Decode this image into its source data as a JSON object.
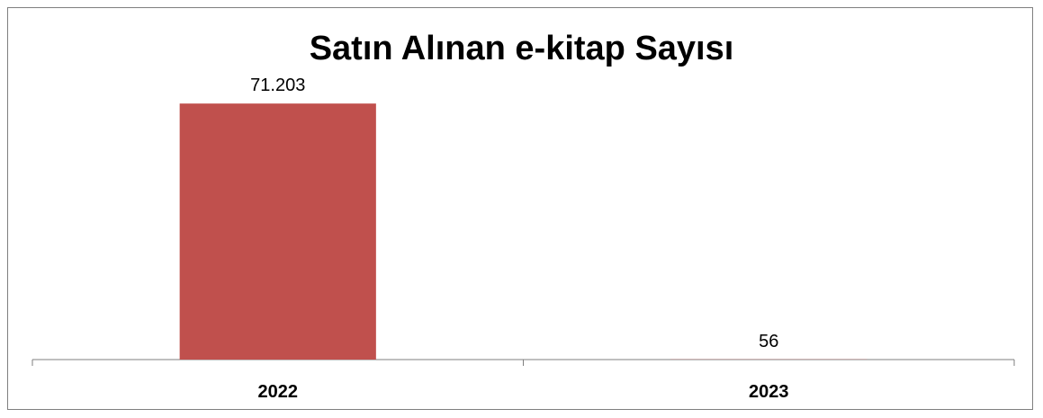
{
  "chart_data": {
    "type": "bar",
    "title": "Satın Alınan e-kitap Sayısı",
    "categories": [
      "2022",
      "2023"
    ],
    "values": [
      71203,
      56
    ],
    "value_labels": [
      "71.203",
      "56"
    ],
    "xlabel": "",
    "ylabel": "",
    "ylim": [
      0,
      80000
    ],
    "grid": false,
    "legend": "none",
    "colors": {
      "bar": "#c0504d",
      "axis": "#7f7f7f",
      "frame": "#7f7f7f"
    }
  }
}
